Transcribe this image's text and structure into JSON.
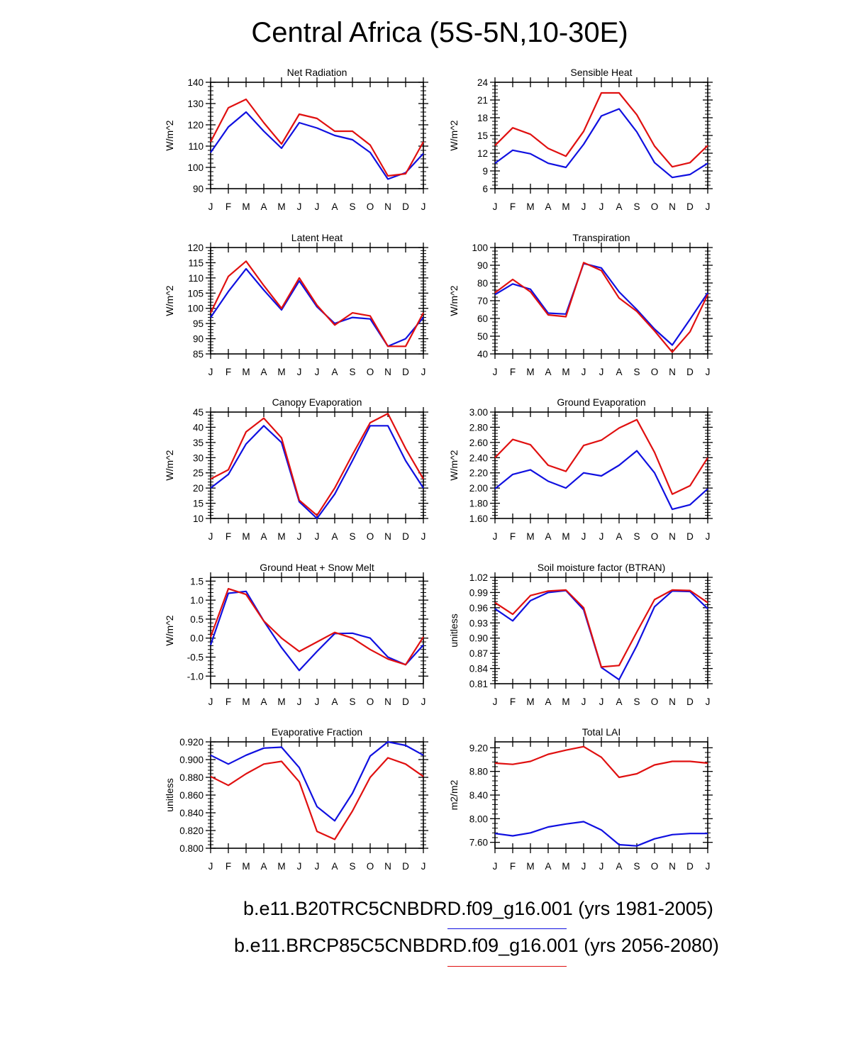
{
  "title": "Central Africa (5S-5N,10-30E)",
  "legend": [
    {
      "label": "b.e11.B20TRC5CNBDRD.f09_g16.001 (yrs 1981-2005)",
      "color": "#1010e0"
    },
    {
      "label": "b.e11.BRCP85C5CNBDRD.f09_g16.001 (yrs 2056-2080)",
      "color": "#e01010"
    }
  ],
  "chart_data": [
    {
      "type": "line",
      "title": "Net Radiation",
      "ylabel": "W/m^2",
      "ylim": [
        90,
        140
      ],
      "yticks": [
        "90",
        "100",
        "110",
        "120",
        "130",
        "140"
      ],
      "categories": [
        "J",
        "F",
        "M",
        "A",
        "M",
        "J",
        "J",
        "A",
        "S",
        "O",
        "N",
        "D",
        "J"
      ],
      "series": [
        {
          "name": "b.e11.B20TRC5CNBDRD.f09_g16.001 (yrs 1981-2005)",
          "color": "#1010e0",
          "values": [
            107,
            119,
            126,
            117,
            109,
            121,
            118.5,
            115,
            113,
            107,
            94.5,
            97.5,
            106.5
          ]
        },
        {
          "name": "b.e11.BRCP85C5CNBDRD.f09_g16.001 (yrs 2056-2080)",
          "color": "#e01010",
          "values": [
            112,
            128,
            132,
            121,
            111,
            125,
            123,
            117,
            117,
            110.5,
            96,
            97,
            112
          ]
        }
      ]
    },
    {
      "type": "line",
      "title": "Sensible Heat",
      "ylabel": "W/m^2",
      "ylim": [
        6,
        24
      ],
      "yticks": [
        "6",
        "9",
        "12",
        "15",
        "18",
        "21",
        "24"
      ],
      "categories": [
        "J",
        "F",
        "M",
        "A",
        "M",
        "J",
        "J",
        "A",
        "S",
        "O",
        "N",
        "D",
        "J"
      ],
      "series": [
        {
          "name": "b.e11.B20TRC5CNBDRD.f09_g16.001 (yrs 1981-2005)",
          "color": "#1010e0",
          "values": [
            10.3,
            12.5,
            11.9,
            10.3,
            9.6,
            13.5,
            18.3,
            19.5,
            15.6,
            10.4,
            7.9,
            8.4,
            10.3
          ]
        },
        {
          "name": "b.e11.BRCP85C5CNBDRD.f09_g16.001 (yrs 2056-2080)",
          "color": "#e01010",
          "values": [
            13.3,
            16.3,
            15.2,
            12.8,
            11.5,
            15.7,
            22.2,
            22.2,
            18.5,
            13.2,
            9.7,
            10.4,
            13.3
          ]
        }
      ]
    },
    {
      "type": "line",
      "title": "Latent Heat",
      "ylabel": "W/m^2",
      "ylim": [
        85,
        120
      ],
      "yticks": [
        "85",
        "90",
        "95",
        "100",
        "105",
        "110",
        "115",
        "120"
      ],
      "categories": [
        "J",
        "F",
        "M",
        "A",
        "M",
        "J",
        "J",
        "A",
        "S",
        "O",
        "N",
        "D",
        "J"
      ],
      "series": [
        {
          "name": "b.e11.B20TRC5CNBDRD.f09_g16.001 (yrs 1981-2005)",
          "color": "#1010e0",
          "values": [
            97,
            105.5,
            113,
            106,
            99.5,
            109,
            100.5,
            95,
            97,
            96.5,
            87.5,
            90,
            97
          ]
        },
        {
          "name": "b.e11.BRCP85C5CNBDRD.f09_g16.001 (yrs 2056-2080)",
          "color": "#e01010",
          "values": [
            98.5,
            110.5,
            115.5,
            107.5,
            100,
            110,
            101,
            94.5,
            98.5,
            97.5,
            87.5,
            87.5,
            98.5
          ]
        }
      ]
    },
    {
      "type": "line",
      "title": "Transpiration",
      "ylabel": "W/m^2",
      "ylim": [
        40,
        100
      ],
      "yticks": [
        "40",
        "50",
        "60",
        "70",
        "80",
        "90",
        "100"
      ],
      "categories": [
        "J",
        "F",
        "M",
        "A",
        "M",
        "J",
        "J",
        "A",
        "S",
        "O",
        "N",
        "D",
        "J"
      ],
      "series": [
        {
          "name": "b.e11.B20TRC5CNBDRD.f09_g16.001 (yrs 1981-2005)",
          "color": "#1010e0",
          "values": [
            73.5,
            79.5,
            76.5,
            63,
            62.5,
            91,
            88.5,
            75,
            65,
            54,
            45,
            59.5,
            74.5
          ]
        },
        {
          "name": "b.e11.BRCP85C5CNBDRD.f09_g16.001 (yrs 2056-2080)",
          "color": "#e01010",
          "values": [
            74.5,
            82,
            75,
            62,
            61,
            91.5,
            87,
            71.5,
            64,
            53,
            41,
            52.5,
            73.5
          ]
        }
      ]
    },
    {
      "type": "line",
      "title": "Canopy Evaporation",
      "ylabel": "W/m^2",
      "ylim": [
        10,
        45
      ],
      "yticks": [
        "10",
        "15",
        "20",
        "25",
        "30",
        "35",
        "40",
        "45"
      ],
      "categories": [
        "J",
        "F",
        "M",
        "A",
        "M",
        "J",
        "J",
        "A",
        "S",
        "O",
        "N",
        "D",
        "J"
      ],
      "series": [
        {
          "name": "b.e11.B20TRC5CNBDRD.f09_g16.001 (yrs 1981-2005)",
          "color": "#1010e0",
          "values": [
            20,
            24.5,
            34.5,
            40.5,
            35,
            15.5,
            10,
            18,
            29,
            40.5,
            40.5,
            29,
            20
          ]
        },
        {
          "name": "b.e11.BRCP85C5CNBDRD.f09_g16.001 (yrs 2056-2080)",
          "color": "#e01010",
          "values": [
            23,
            26,
            38.5,
            43,
            36.5,
            16,
            11,
            20,
            31,
            41.5,
            44.5,
            33,
            23
          ]
        }
      ]
    },
    {
      "type": "line",
      "title": "Ground Evaporation",
      "ylabel": "W/m^2",
      "ylim": [
        1.6,
        3.0
      ],
      "yticks": [
        "1.60",
        "1.80",
        "2.00",
        "2.20",
        "2.40",
        "2.60",
        "2.80",
        "3.00"
      ],
      "categories": [
        "J",
        "F",
        "M",
        "A",
        "M",
        "J",
        "J",
        "A",
        "S",
        "O",
        "N",
        "D",
        "J"
      ],
      "series": [
        {
          "name": "b.e11.B20TRC5CNBDRD.f09_g16.001 (yrs 1981-2005)",
          "color": "#1010e0",
          "values": [
            1.99,
            2.18,
            2.24,
            2.09,
            2.0,
            2.2,
            2.16,
            2.3,
            2.49,
            2.2,
            1.72,
            1.78,
            1.99
          ]
        },
        {
          "name": "b.e11.BRCP85C5CNBDRD.f09_g16.001 (yrs 2056-2080)",
          "color": "#e01010",
          "values": [
            2.4,
            2.64,
            2.57,
            2.3,
            2.22,
            2.56,
            2.63,
            2.79,
            2.9,
            2.47,
            1.92,
            2.03,
            2.4
          ]
        }
      ]
    },
    {
      "type": "line",
      "title": "Ground Heat + Snow Melt",
      "ylabel": "W/m^2",
      "ylim": [
        -1.2,
        1.6
      ],
      "yticks": [
        "-1.0",
        "-0.5",
        "0.0",
        "0.5",
        "1.0",
        "1.5"
      ],
      "ytick_values": [
        -1.0,
        -0.5,
        0.0,
        0.5,
        1.0,
        1.5
      ],
      "categories": [
        "J",
        "F",
        "M",
        "A",
        "M",
        "J",
        "J",
        "A",
        "S",
        "O",
        "N",
        "D",
        "J"
      ],
      "series": [
        {
          "name": "b.e11.B20TRC5CNBDRD.f09_g16.001 (yrs 1981-2005)",
          "color": "#1010e0",
          "values": [
            -0.18,
            1.18,
            1.23,
            0.45,
            -0.25,
            -0.85,
            -0.35,
            0.12,
            0.13,
            0.0,
            -0.5,
            -0.7,
            -0.18
          ]
        },
        {
          "name": "b.e11.BRCP85C5CNBDRD.f09_g16.001 (yrs 2056-2080)",
          "color": "#e01010",
          "values": [
            0.03,
            1.3,
            1.15,
            0.45,
            0.0,
            -0.35,
            -0.1,
            0.15,
            0.0,
            -0.3,
            -0.55,
            -0.7,
            0.03
          ]
        }
      ]
    },
    {
      "type": "line",
      "title": "Soil moisture factor (BTRAN)",
      "ylabel": "unitless",
      "ylim": [
        0.81,
        1.02
      ],
      "yticks": [
        "0.81",
        "0.84",
        "0.87",
        "0.90",
        "0.93",
        "0.96",
        "0.99",
        "1.02"
      ],
      "categories": [
        "J",
        "F",
        "M",
        "A",
        "M",
        "J",
        "J",
        "A",
        "S",
        "O",
        "N",
        "D",
        "J"
      ],
      "series": [
        {
          "name": "b.e11.B20TRC5CNBDRD.f09_g16.001 (yrs 1981-2005)",
          "color": "#1010e0",
          "values": [
            0.958,
            0.934,
            0.974,
            0.99,
            0.994,
            0.956,
            0.842,
            0.818,
            0.885,
            0.962,
            0.993,
            0.992,
            0.958
          ]
        },
        {
          "name": "b.e11.BRCP85C5CNBDRD.f09_g16.001 (yrs 2056-2080)",
          "color": "#e01010",
          "values": [
            0.97,
            0.947,
            0.984,
            0.993,
            0.995,
            0.96,
            0.843,
            0.846,
            0.912,
            0.976,
            0.995,
            0.994,
            0.97
          ]
        }
      ]
    },
    {
      "type": "line",
      "title": "Evaporative Fraction",
      "ylabel": "unitless",
      "ylim": [
        0.8,
        0.92
      ],
      "yticks": [
        "0.800",
        "0.820",
        "0.840",
        "0.860",
        "0.880",
        "0.900",
        "0.920"
      ],
      "categories": [
        "J",
        "F",
        "M",
        "A",
        "M",
        "J",
        "J",
        "A",
        "S",
        "O",
        "N",
        "D",
        "J"
      ],
      "series": [
        {
          "name": "b.e11.B20TRC5CNBDRD.f09_g16.001 (yrs 1981-2005)",
          "color": "#1010e0",
          "values": [
            0.905,
            0.895,
            0.905,
            0.913,
            0.914,
            0.891,
            0.847,
            0.831,
            0.862,
            0.904,
            0.92,
            0.916,
            0.905
          ]
        },
        {
          "name": "b.e11.BRCP85C5CNBDRD.f09_g16.001 (yrs 2056-2080)",
          "color": "#e01010",
          "values": [
            0.881,
            0.871,
            0.884,
            0.895,
            0.898,
            0.875,
            0.819,
            0.81,
            0.842,
            0.88,
            0.902,
            0.895,
            0.881
          ]
        }
      ]
    },
    {
      "type": "line",
      "title": "Total LAI",
      "ylabel": "m2/m2",
      "ylim": [
        7.5,
        9.3
      ],
      "yticks": [
        "7.60",
        "8.00",
        "8.40",
        "8.80",
        "9.20"
      ],
      "ytick_values": [
        7.6,
        8.0,
        8.4,
        8.8,
        9.2
      ],
      "categories": [
        "J",
        "F",
        "M",
        "A",
        "M",
        "J",
        "J",
        "A",
        "S",
        "O",
        "N",
        "D",
        "J"
      ],
      "series": [
        {
          "name": "b.e11.B20TRC5CNBDRD.f09_g16.001 (yrs 1981-2005)",
          "color": "#1010e0",
          "values": [
            7.75,
            7.71,
            7.76,
            7.86,
            7.91,
            7.95,
            7.81,
            7.56,
            7.54,
            7.66,
            7.73,
            7.75,
            7.75
          ]
        },
        {
          "name": "b.e11.BRCP85C5CNBDRD.f09_g16.001 (yrs 2056-2080)",
          "color": "#e01010",
          "values": [
            8.94,
            8.92,
            8.97,
            9.09,
            9.16,
            9.22,
            9.04,
            8.7,
            8.76,
            8.91,
            8.97,
            8.97,
            8.94
          ]
        }
      ]
    }
  ]
}
